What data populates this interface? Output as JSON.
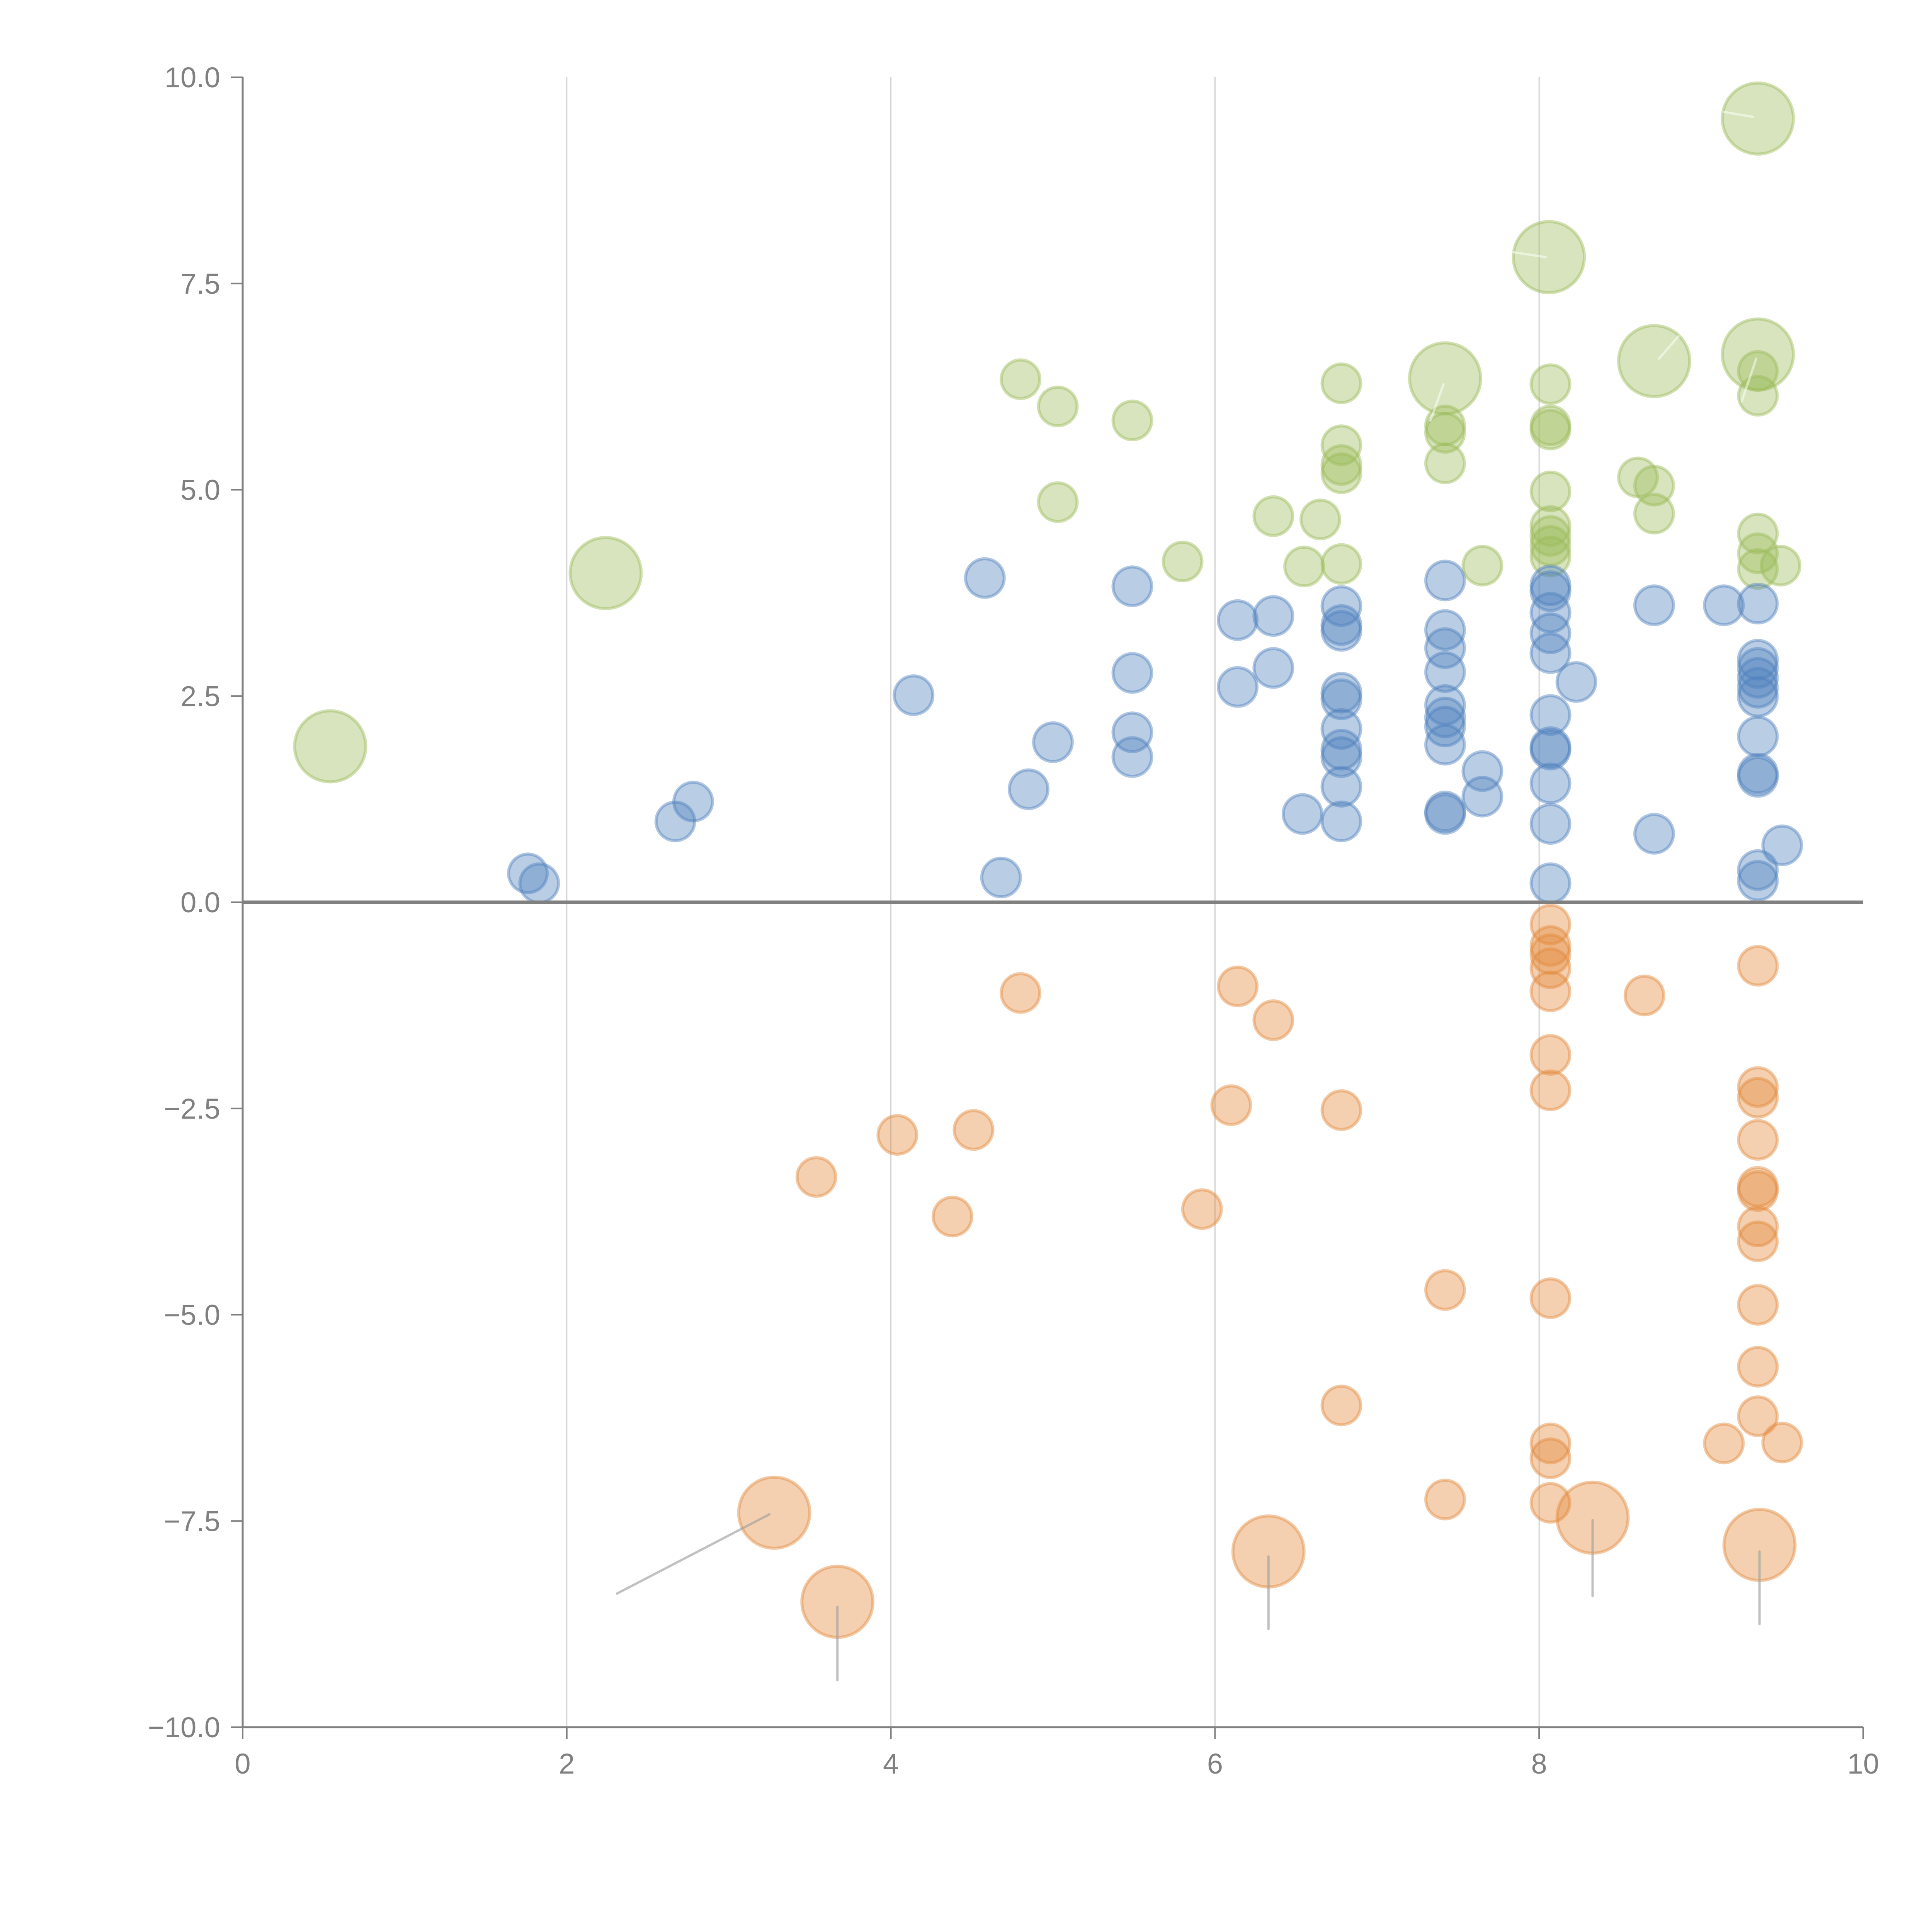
{
  "chart_data": {
    "type": "scatter",
    "title": "",
    "xlabel": "",
    "ylabel": "",
    "xlim": [
      0,
      10
    ],
    "ylim": [
      -10,
      10
    ],
    "x_ticks": [
      "0",
      "2",
      "4",
      "6",
      "8",
      "10"
    ],
    "x_tick_values": [
      0,
      2,
      4,
      6,
      8,
      10
    ],
    "y_ticks": [
      "10.0",
      "7.5",
      "5.0",
      "2.5",
      "0.0",
      "−2.5",
      "−5.0",
      "−7.5",
      "−10.0"
    ],
    "y_tick_values": [
      10,
      7.5,
      5,
      2.5,
      0,
      -2.5,
      -5,
      -7.5,
      -10
    ],
    "grid": "vertical",
    "zero_line": true,
    "legend": "none",
    "series": [
      {
        "name": "green",
        "color": "#9bbb59",
        "points": [
          {
            "x": 4.8,
            "y": 6.34,
            "size": "small"
          },
          {
            "x": 5.03,
            "y": 6.01,
            "size": "small"
          },
          {
            "x": 5.49,
            "y": 5.84,
            "size": "small"
          },
          {
            "x": 5.03,
            "y": 4.85,
            "size": "small"
          },
          {
            "x": 5.8,
            "y": 4.13,
            "size": "small"
          },
          {
            "x": 6.36,
            "y": 4.68,
            "size": "small"
          },
          {
            "x": 6.65,
            "y": 4.64,
            "size": "small"
          },
          {
            "x": 6.55,
            "y": 4.07,
            "size": "small"
          },
          {
            "x": 6.78,
            "y": 6.29,
            "size": "small"
          },
          {
            "x": 6.78,
            "y": 5.54,
            "size": "small"
          },
          {
            "x": 6.78,
            "y": 5.3,
            "size": "small"
          },
          {
            "x": 6.78,
            "y": 5.2,
            "size": "small"
          },
          {
            "x": 6.78,
            "y": 4.1,
            "size": "small"
          },
          {
            "x": 7.42,
            "y": 5.78,
            "size": "small"
          },
          {
            "x": 7.42,
            "y": 5.69,
            "size": "small"
          },
          {
            "x": 7.42,
            "y": 5.32,
            "size": "small"
          },
          {
            "x": 7.65,
            "y": 4.08,
            "size": "small"
          },
          {
            "x": 8.07,
            "y": 6.28,
            "size": "small"
          },
          {
            "x": 8.07,
            "y": 5.78,
            "size": "small"
          },
          {
            "x": 8.07,
            "y": 5.73,
            "size": "small"
          },
          {
            "x": 8.07,
            "y": 4.98,
            "size": "small"
          },
          {
            "x": 8.07,
            "y": 4.56,
            "size": "small"
          },
          {
            "x": 8.07,
            "y": 4.44,
            "size": "small"
          },
          {
            "x": 8.07,
            "y": 4.32,
            "size": "small"
          },
          {
            "x": 8.07,
            "y": 4.19,
            "size": "small"
          },
          {
            "x": 8.61,
            "y": 5.15,
            "size": "small"
          },
          {
            "x": 8.71,
            "y": 5.05,
            "size": "small"
          },
          {
            "x": 8.71,
            "y": 4.71,
            "size": "small"
          },
          {
            "x": 9.35,
            "y": 6.44,
            "size": "small"
          },
          {
            "x": 9.35,
            "y": 6.14,
            "size": "small"
          },
          {
            "x": 9.35,
            "y": 4.47,
            "size": "small"
          },
          {
            "x": 9.35,
            "y": 4.23,
            "size": "small"
          },
          {
            "x": 9.35,
            "y": 4.04,
            "size": "small"
          },
          {
            "x": 9.49,
            "y": 4.08,
            "size": "small"
          },
          {
            "x": 0.54,
            "y": 1.89,
            "size": "large"
          },
          {
            "x": 2.24,
            "y": 3.99,
            "size": "large"
          },
          {
            "x": 7.42,
            "y": 6.35,
            "size": "large"
          },
          {
            "x": 8.06,
            "y": 7.82,
            "size": "large"
          },
          {
            "x": 8.71,
            "y": 6.56,
            "size": "large"
          },
          {
            "x": 9.35,
            "y": 6.64,
            "size": "large"
          },
          {
            "x": 9.35,
            "y": 9.5,
            "size": "large"
          }
        ]
      },
      {
        "name": "blue",
        "color": "#4f81bd",
        "points": [
          {
            "x": 1.76,
            "y": 0.35,
            "size": "small"
          },
          {
            "x": 1.83,
            "y": 0.23,
            "size": "small"
          },
          {
            "x": 2.67,
            "y": 0.98,
            "size": "small"
          },
          {
            "x": 2.78,
            "y": 1.22,
            "size": "small"
          },
          {
            "x": 4.14,
            "y": 2.51,
            "size": "small"
          },
          {
            "x": 4.58,
            "y": 3.93,
            "size": "small"
          },
          {
            "x": 4.68,
            "y": 0.3,
            "size": "small"
          },
          {
            "x": 4.85,
            "y": 1.37,
            "size": "small"
          },
          {
            "x": 5.0,
            "y": 1.94,
            "size": "small"
          },
          {
            "x": 5.49,
            "y": 3.83,
            "size": "small"
          },
          {
            "x": 5.49,
            "y": 2.78,
            "size": "small"
          },
          {
            "x": 5.49,
            "y": 2.06,
            "size": "small"
          },
          {
            "x": 5.49,
            "y": 1.76,
            "size": "small"
          },
          {
            "x": 6.14,
            "y": 3.42,
            "size": "small"
          },
          {
            "x": 6.14,
            "y": 2.61,
            "size": "small"
          },
          {
            "x": 6.36,
            "y": 3.47,
            "size": "small"
          },
          {
            "x": 6.36,
            "y": 2.84,
            "size": "small"
          },
          {
            "x": 6.54,
            "y": 1.07,
            "size": "small"
          },
          {
            "x": 6.78,
            "y": 3.59,
            "size": "small"
          },
          {
            "x": 6.78,
            "y": 3.36,
            "size": "small"
          },
          {
            "x": 6.78,
            "y": 3.29,
            "size": "small"
          },
          {
            "x": 6.78,
            "y": 2.54,
            "size": "small"
          },
          {
            "x": 6.78,
            "y": 2.46,
            "size": "small"
          },
          {
            "x": 6.78,
            "y": 2.1,
            "size": "small"
          },
          {
            "x": 6.78,
            "y": 1.85,
            "size": "small"
          },
          {
            "x": 6.78,
            "y": 1.76,
            "size": "small"
          },
          {
            "x": 6.78,
            "y": 1.4,
            "size": "small"
          },
          {
            "x": 6.78,
            "y": 0.98,
            "size": "small"
          },
          {
            "x": 7.42,
            "y": 3.9,
            "size": "small"
          },
          {
            "x": 7.42,
            "y": 3.3,
            "size": "small"
          },
          {
            "x": 7.42,
            "y": 3.08,
            "size": "small"
          },
          {
            "x": 7.42,
            "y": 2.79,
            "size": "small"
          },
          {
            "x": 7.42,
            "y": 2.39,
            "size": "small"
          },
          {
            "x": 7.42,
            "y": 2.24,
            "size": "small"
          },
          {
            "x": 7.42,
            "y": 2.13,
            "size": "small"
          },
          {
            "x": 7.42,
            "y": 1.91,
            "size": "small"
          },
          {
            "x": 7.42,
            "y": 1.1,
            "size": "small"
          },
          {
            "x": 7.42,
            "y": 1.07,
            "size": "small"
          },
          {
            "x": 7.65,
            "y": 1.59,
            "size": "small"
          },
          {
            "x": 7.65,
            "y": 1.28,
            "size": "small"
          },
          {
            "x": 8.07,
            "y": 3.84,
            "size": "small"
          },
          {
            "x": 8.07,
            "y": 3.77,
            "size": "small"
          },
          {
            "x": 8.07,
            "y": 3.51,
            "size": "small"
          },
          {
            "x": 8.07,
            "y": 3.26,
            "size": "small"
          },
          {
            "x": 8.07,
            "y": 3.02,
            "size": "small"
          },
          {
            "x": 8.23,
            "y": 2.67,
            "size": "small"
          },
          {
            "x": 8.07,
            "y": 2.27,
            "size": "small"
          },
          {
            "x": 8.07,
            "y": 1.88,
            "size": "small"
          },
          {
            "x": 8.07,
            "y": 1.85,
            "size": "small"
          },
          {
            "x": 8.07,
            "y": 1.44,
            "size": "small"
          },
          {
            "x": 8.07,
            "y": 0.95,
            "size": "small"
          },
          {
            "x": 8.07,
            "y": 0.23,
            "size": "small"
          },
          {
            "x": 8.71,
            "y": 3.6,
            "size": "small"
          },
          {
            "x": 9.14,
            "y": 3.6,
            "size": "small"
          },
          {
            "x": 8.71,
            "y": 0.83,
            "size": "small"
          },
          {
            "x": 9.35,
            "y": 3.62,
            "size": "small"
          },
          {
            "x": 9.35,
            "y": 2.94,
            "size": "small"
          },
          {
            "x": 9.35,
            "y": 2.84,
            "size": "small"
          },
          {
            "x": 9.35,
            "y": 2.72,
            "size": "small"
          },
          {
            "x": 9.35,
            "y": 2.6,
            "size": "small"
          },
          {
            "x": 9.35,
            "y": 2.49,
            "size": "small"
          },
          {
            "x": 9.35,
            "y": 2.01,
            "size": "small"
          },
          {
            "x": 9.35,
            "y": 1.56,
            "size": "small"
          },
          {
            "x": 9.35,
            "y": 1.52,
            "size": "small"
          },
          {
            "x": 9.35,
            "y": 0.39,
            "size": "small"
          },
          {
            "x": 9.35,
            "y": 0.26,
            "size": "small"
          },
          {
            "x": 9.5,
            "y": 0.69,
            "size": "small"
          }
        ]
      },
      {
        "name": "orange",
        "color": "#e3893c",
        "points": [
          {
            "x": 3.54,
            "y": -3.33,
            "size": "small"
          },
          {
            "x": 4.04,
            "y": -2.82,
            "size": "small"
          },
          {
            "x": 4.51,
            "y": -2.76,
            "size": "small"
          },
          {
            "x": 4.38,
            "y": -3.81,
            "size": "small"
          },
          {
            "x": 4.8,
            "y": -1.1,
            "size": "small"
          },
          {
            "x": 5.92,
            "y": -3.72,
            "size": "small"
          },
          {
            "x": 6.1,
            "y": -2.46,
            "size": "small"
          },
          {
            "x": 6.14,
            "y": -1.02,
            "size": "small"
          },
          {
            "x": 6.36,
            "y": -1.43,
            "size": "small"
          },
          {
            "x": 6.78,
            "y": -2.52,
            "size": "small"
          },
          {
            "x": 6.78,
            "y": -6.1,
            "size": "small"
          },
          {
            "x": 7.42,
            "y": -4.7,
            "size": "small"
          },
          {
            "x": 7.42,
            "y": -7.24,
            "size": "small"
          },
          {
            "x": 8.07,
            "y": -0.27,
            "size": "small"
          },
          {
            "x": 8.07,
            "y": -0.53,
            "size": "small"
          },
          {
            "x": 8.07,
            "y": -0.63,
            "size": "small"
          },
          {
            "x": 8.07,
            "y": -0.8,
            "size": "small"
          },
          {
            "x": 8.07,
            "y": -1.08,
            "size": "small"
          },
          {
            "x": 8.07,
            "y": -1.85,
            "size": "small"
          },
          {
            "x": 8.07,
            "y": -2.28,
            "size": "small"
          },
          {
            "x": 8.07,
            "y": -4.8,
            "size": "small"
          },
          {
            "x": 8.07,
            "y": -6.56,
            "size": "small"
          },
          {
            "x": 8.07,
            "y": -6.74,
            "size": "small"
          },
          {
            "x": 8.07,
            "y": -7.28,
            "size": "small"
          },
          {
            "x": 8.65,
            "y": -1.13,
            "size": "small"
          },
          {
            "x": 9.35,
            "y": -0.77,
            "size": "small"
          },
          {
            "x": 9.35,
            "y": -2.24,
            "size": "small"
          },
          {
            "x": 9.35,
            "y": -2.37,
            "size": "small"
          },
          {
            "x": 9.35,
            "y": -2.88,
            "size": "small"
          },
          {
            "x": 9.35,
            "y": -3.45,
            "size": "small"
          },
          {
            "x": 9.35,
            "y": -3.5,
            "size": "small"
          },
          {
            "x": 9.35,
            "y": -3.93,
            "size": "small"
          },
          {
            "x": 9.35,
            "y": -4.11,
            "size": "small"
          },
          {
            "x": 9.35,
            "y": -4.88,
            "size": "small"
          },
          {
            "x": 9.35,
            "y": -5.63,
            "size": "small"
          },
          {
            "x": 9.35,
            "y": -6.23,
            "size": "small"
          },
          {
            "x": 9.14,
            "y": -6.56,
            "size": "small"
          },
          {
            "x": 9.5,
            "y": -6.55,
            "size": "small"
          },
          {
            "x": 3.28,
            "y": -7.4,
            "size": "large"
          },
          {
            "x": 3.67,
            "y": -8.48,
            "size": "large"
          },
          {
            "x": 6.33,
            "y": -7.87,
            "size": "large"
          },
          {
            "x": 8.33,
            "y": -7.46,
            "size": "large"
          },
          {
            "x": 9.36,
            "y": -7.79,
            "size": "large"
          }
        ]
      }
    ],
    "leader_lines": [
      {
        "from": [
          3.25,
          -7.42
        ],
        "to": [
          2.31,
          -8.38
        ],
        "color": "#a0a0a0"
      },
      {
        "from": [
          3.67,
          -8.54
        ],
        "to": [
          3.67,
          -9.43
        ],
        "color": "#a0a0a0"
      },
      {
        "from": [
          6.33,
          -7.93
        ],
        "to": [
          6.33,
          -8.81
        ],
        "color": "#a0a0a0"
      },
      {
        "from": [
          8.33,
          -7.49
        ],
        "to": [
          8.33,
          -8.41
        ],
        "color": "#a0a0a0"
      },
      {
        "from": [
          9.36,
          -7.87
        ],
        "to": [
          9.36,
          -8.75
        ],
        "color": "#a0a0a0"
      },
      {
        "from": [
          9.32,
          9.52
        ],
        "to": [
          9.14,
          9.58
        ],
        "color": "#ffffff"
      },
      {
        "from": [
          8.04,
          7.82
        ],
        "to": [
          7.84,
          7.88
        ],
        "color": "#ffffff"
      },
      {
        "from": [
          8.74,
          6.59
        ],
        "to": [
          8.86,
          6.86
        ],
        "color": "#ffffff"
      },
      {
        "from": [
          7.41,
          6.28
        ],
        "to": [
          7.33,
          5.84
        ],
        "color": "#ffffff"
      },
      {
        "from": [
          9.34,
          6.59
        ],
        "to": [
          9.25,
          6.07
        ],
        "color": "#ffffff"
      }
    ]
  }
}
